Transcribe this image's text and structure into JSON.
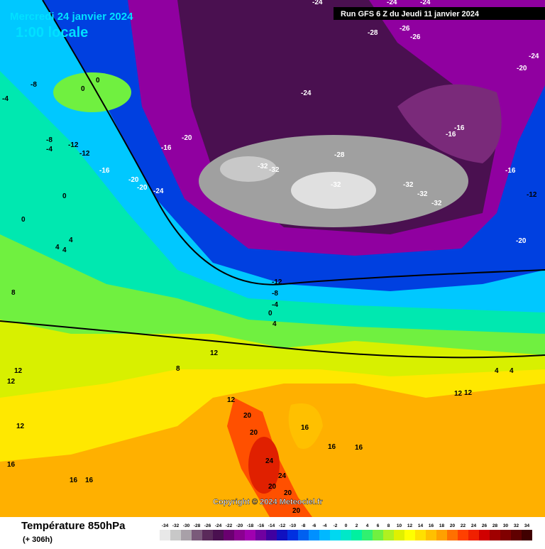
{
  "header": {
    "title": "Mercredi 24 janvier 2024",
    "subtitle": "1:00 locale",
    "run": "Run GFS 6 Z du Jeudi 11 janvier 2024"
  },
  "map": {
    "contour_labels": [
      -24,
      -24,
      -24,
      -28,
      -26,
      -26,
      -24,
      -20,
      -24,
      -8,
      0,
      0,
      -4,
      -8,
      -4,
      -12,
      -12,
      -16,
      -16,
      -20,
      -28,
      -32,
      -32,
      -32,
      -32,
      -32,
      -32,
      -16,
      -16,
      -16,
      -12,
      -20,
      -20,
      -24,
      0,
      0,
      4,
      4,
      4,
      -20,
      -12,
      -8,
      -4,
      0,
      4,
      8,
      12,
      12,
      16,
      20,
      20,
      24,
      24,
      20,
      20,
      16,
      16,
      16,
      12,
      4,
      4,
      12,
      12,
      16,
      16,
      20,
      12,
      12,
      8
    ],
    "copyright": "Copyright © 2024 Meteociel.fr"
  },
  "legend": {
    "title": "Température 850hPa",
    "lead": "(+ 306h)",
    "values": [
      -34,
      -32,
      -30,
      -28,
      -26,
      -24,
      -22,
      -20,
      -18,
      -16,
      -14,
      -12,
      -10,
      -8,
      -6,
      -4,
      -2,
      0,
      2,
      4,
      6,
      8,
      10,
      12,
      14,
      16,
      18,
      20,
      22,
      24,
      26,
      28,
      30,
      32,
      34
    ],
    "colors": [
      "#e8e8e8",
      "#c8c8c8",
      "#a8a0a8",
      "#7a5a7a",
      "#5a2a5a",
      "#4a1050",
      "#6a0070",
      "#8a0090",
      "#a000b0",
      "#7000a0",
      "#4000a0",
      "#1010c0",
      "#0030e0",
      "#0060f0",
      "#0090ff",
      "#00b8ff",
      "#00d8f0",
      "#00e8c8",
      "#00f0a0",
      "#30f070",
      "#70f040",
      "#b0f020",
      "#e0f000",
      "#ffff00",
      "#ffe000",
      "#ffc000",
      "#ffa000",
      "#ff7000",
      "#ff4000",
      "#f02000",
      "#d00000",
      "#a00000",
      "#800000",
      "#600000",
      "#400000"
    ]
  }
}
